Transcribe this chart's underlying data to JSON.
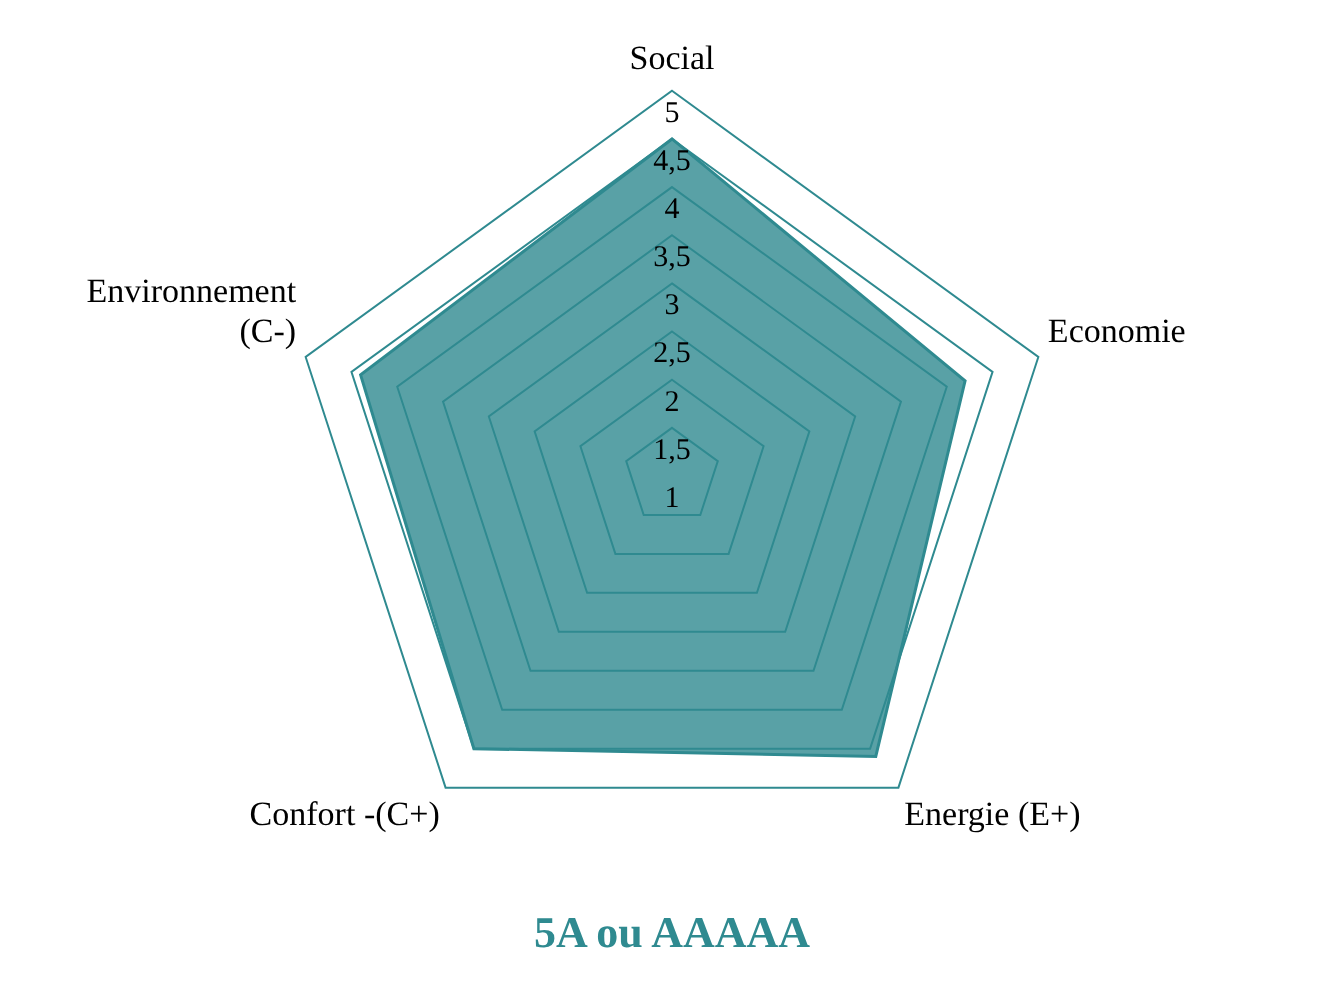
{
  "chart_data": {
    "type": "radar",
    "title": "5A ou AAAAA",
    "categories": [
      "Social",
      "Economie",
      "Energie (E+)",
      "Confort -(C+)",
      "Environnement\n(C-)"
    ],
    "series": [
      {
        "color": "#2f8a90",
        "values": [
          4.5,
          4.2,
          4.6,
          4.5,
          4.4
        ]
      }
    ],
    "ylim": [
      1,
      5
    ],
    "yticks": [
      1,
      {
        "value": 1.5,
        "label": "1,5"
      },
      2,
      {
        "value": 2.5,
        "label": "2,5"
      },
      3,
      {
        "value": 3.5,
        "label": "3,5"
      },
      4,
      {
        "value": 4.5,
        "label": "4,5"
      },
      5
    ],
    "grid": true,
    "legend": false,
    "marker": "none"
  }
}
